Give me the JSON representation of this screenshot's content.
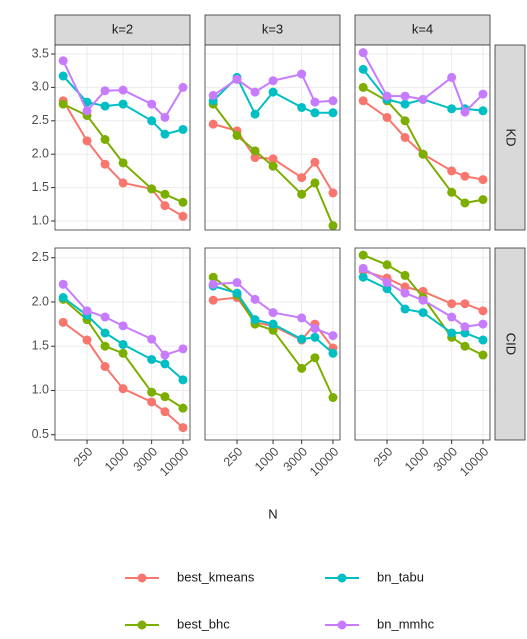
{
  "chart_data": {
    "type": "line",
    "x_scale": "log",
    "xlabel": "N",
    "x": [
      100,
      250,
      500,
      1000,
      3000,
      5000,
      10000
    ],
    "xlim": [
      73,
      13100
    ],
    "xticks": [
      250,
      1000,
      3000,
      10000
    ],
    "grid": true,
    "legend": "bottom",
    "columns": [
      "k=2",
      "k=3",
      "k=4"
    ],
    "series": [
      {
        "name": "best_kmeans",
        "color": "#F8766D"
      },
      {
        "name": "best_bhc",
        "color": "#7CAE00"
      },
      {
        "name": "bn_tabu",
        "color": "#00BFC4"
      },
      {
        "name": "bn_mmhc",
        "color": "#C77CFF"
      }
    ],
    "rows": [
      {
        "label": "KD",
        "ylim": [
          0.865,
          3.635
        ],
        "yticks": [
          {
            "value": 1,
            "label": "1.0"
          },
          1.5,
          {
            "value": 2,
            "label": "2.0"
          },
          2.5,
          {
            "value": 3,
            "label": "3.0"
          },
          3.5
        ],
        "panels": [
          {
            "series": [
              {
                "values": [
                  2.8,
                  2.2,
                  1.85,
                  1.57,
                  1.48,
                  1.23,
                  1.07
                ]
              },
              {
                "values": [
                  2.75,
                  2.58,
                  2.22,
                  1.87,
                  1.48,
                  1.4,
                  1.28
                ]
              },
              {
                "values": [
                  3.17,
                  2.78,
                  2.72,
                  2.75,
                  2.5,
                  2.3,
                  2.37
                ]
              },
              {
                "values": [
                  3.4,
                  2.65,
                  2.95,
                  2.96,
                  2.75,
                  2.55,
                  3.0
                ]
              }
            ]
          },
          {
            "series": [
              {
                "values": [
                  2.45,
                  2.35,
                  1.95,
                  1.93,
                  1.65,
                  1.88,
                  1.42
                ]
              },
              {
                "values": [
                  2.75,
                  2.28,
                  2.05,
                  1.82,
                  1.4,
                  1.57,
                  0.93
                ]
              },
              {
                "values": [
                  2.8,
                  3.15,
                  2.6,
                  2.93,
                  2.7,
                  2.62,
                  2.62
                ]
              },
              {
                "values": [
                  2.88,
                  3.12,
                  2.93,
                  3.1,
                  3.2,
                  2.78,
                  2.8
                ]
              }
            ]
          },
          {
            "series": [
              {
                "values": [
                  2.8,
                  2.55,
                  2.25,
                  2.0,
                  1.75,
                  1.67,
                  1.62
                ]
              },
              {
                "values": [
                  3.0,
                  2.8,
                  2.5,
                  2.0,
                  1.43,
                  1.27,
                  1.32
                ]
              },
              {
                "values": [
                  3.27,
                  2.82,
                  2.75,
                  2.82,
                  2.68,
                  2.68,
                  2.65
                ]
              },
              {
                "values": [
                  3.52,
                  2.87,
                  2.87,
                  2.82,
                  3.15,
                  2.63,
                  2.9
                ]
              }
            ]
          }
        ]
      },
      {
        "label": "CID",
        "ylim": [
          0.44,
          2.61
        ],
        "yticks": [
          0.5,
          {
            "value": 1,
            "label": "1.0"
          },
          1.5,
          {
            "value": 2,
            "label": "2.0"
          },
          2.5
        ],
        "panels": [
          {
            "series": [
              {
                "values": [
                  1.77,
                  1.57,
                  1.27,
                  1.02,
                  0.87,
                  0.76,
                  0.58
                ]
              },
              {
                "values": [
                  2.03,
                  1.8,
                  1.5,
                  1.42,
                  0.98,
                  0.93,
                  0.8
                ]
              },
              {
                "values": [
                  2.05,
                  1.85,
                  1.65,
                  1.52,
                  1.35,
                  1.3,
                  1.12
                ]
              },
              {
                "values": [
                  2.2,
                  1.9,
                  1.83,
                  1.73,
                  1.58,
                  1.4,
                  1.47
                ]
              }
            ]
          },
          {
            "series": [
              {
                "values": [
                  2.02,
                  2.05,
                  1.77,
                  1.73,
                  1.57,
                  1.75,
                  1.48
                ]
              },
              {
                "values": [
                  2.28,
                  2.08,
                  1.75,
                  1.68,
                  1.25,
                  1.37,
                  0.92
                ]
              },
              {
                "values": [
                  2.18,
                  2.1,
                  1.8,
                  1.75,
                  1.58,
                  1.6,
                  1.42
                ]
              },
              {
                "values": [
                  2.2,
                  2.22,
                  2.03,
                  1.88,
                  1.82,
                  1.7,
                  1.62
                ]
              }
            ]
          },
          {
            "series": [
              {
                "values": [
                  2.35,
                  2.27,
                  2.17,
                  2.12,
                  1.98,
                  1.98,
                  1.9
                ]
              },
              {
                "values": [
                  2.53,
                  2.42,
                  2.3,
                  2.05,
                  1.6,
                  1.5,
                  1.4
                ]
              },
              {
                "values": [
                  2.28,
                  2.15,
                  1.92,
                  1.88,
                  1.65,
                  1.65,
                  1.57
                ]
              },
              {
                "values": [
                  2.38,
                  2.22,
                  2.1,
                  2.02,
                  1.83,
                  1.72,
                  1.75
                ]
              }
            ]
          }
        ]
      }
    ]
  }
}
